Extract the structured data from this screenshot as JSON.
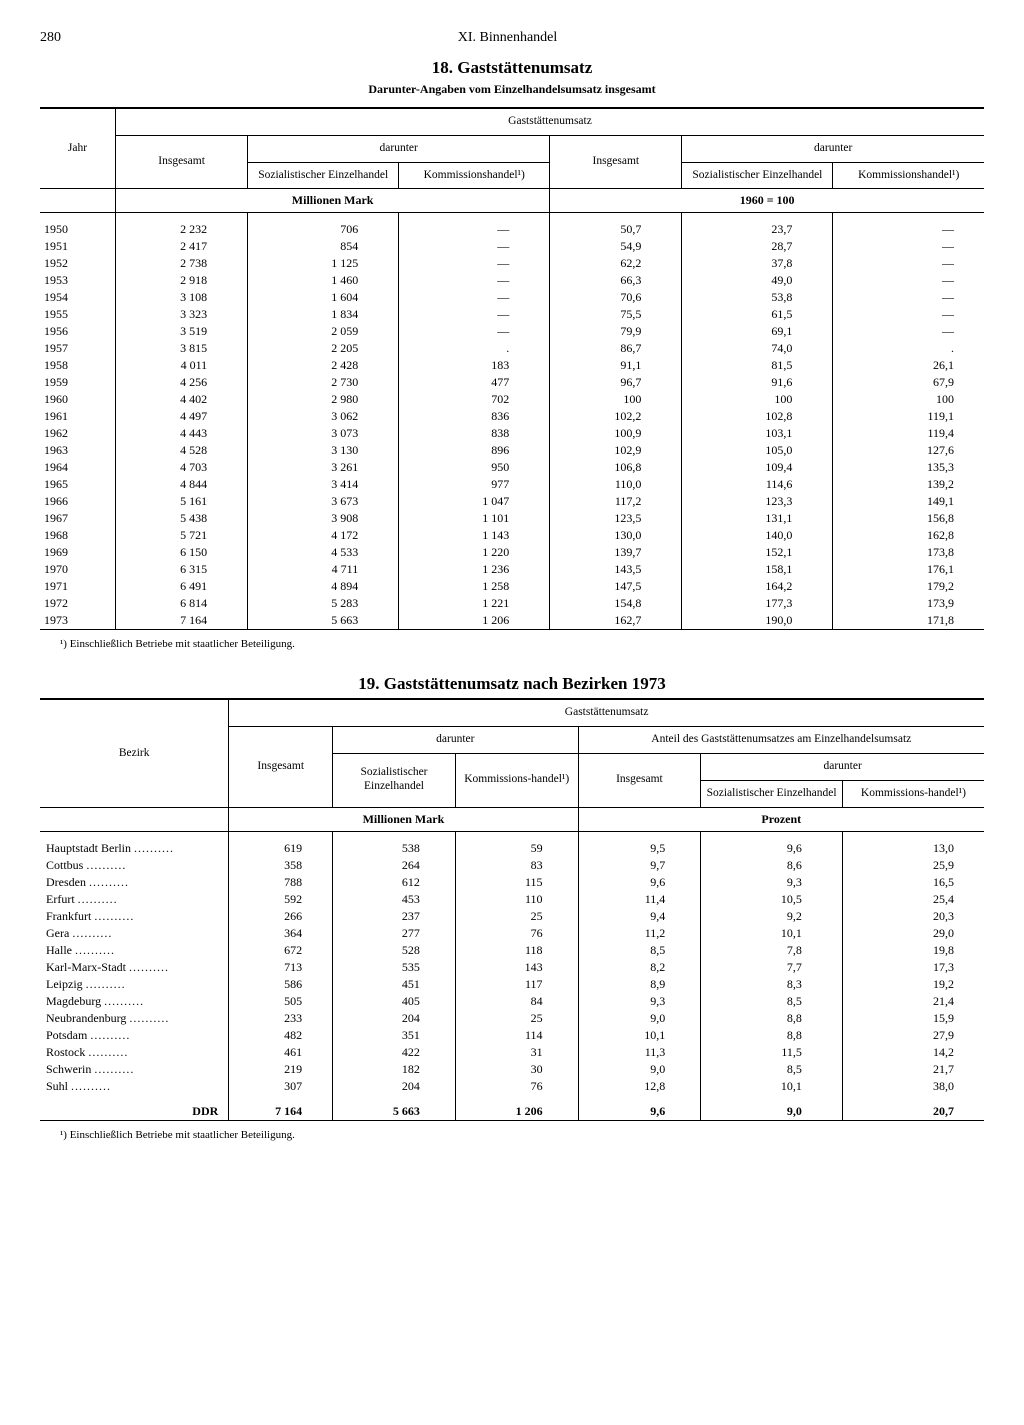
{
  "page": {
    "number": "280",
    "chapter": "XI. Binnenhandel"
  },
  "table18": {
    "title": "18. Gaststättenumsatz",
    "subtitle": "Darunter-Angaben vom Einzelhandelsumsatz insgesamt",
    "superheader": "Gaststättenumsatz",
    "col_year": "Jahr",
    "col_insgesamt": "Insgesamt",
    "col_darunter": "darunter",
    "col_soz": "Sozialistischer Einzelhandel",
    "col_komm": "Kommissionshandel¹)",
    "unit_left": "Millionen Mark",
    "unit_right": "1960 = 100",
    "rows": [
      {
        "y": "1950",
        "a": "2 232",
        "b": "706",
        "c": "—",
        "d": "50,7",
        "e": "23,7",
        "f": "—"
      },
      {
        "y": "1951",
        "a": "2 417",
        "b": "854",
        "c": "—",
        "d": "54,9",
        "e": "28,7",
        "f": "—"
      },
      {
        "y": "1952",
        "a": "2 738",
        "b": "1 125",
        "c": "—",
        "d": "62,2",
        "e": "37,8",
        "f": "—"
      },
      {
        "y": "1953",
        "a": "2 918",
        "b": "1 460",
        "c": "—",
        "d": "66,3",
        "e": "49,0",
        "f": "—"
      },
      {
        "y": "1954",
        "a": "3 108",
        "b": "1 604",
        "c": "—",
        "d": "70,6",
        "e": "53,8",
        "f": "—"
      },
      {
        "y": "1955",
        "a": "3 323",
        "b": "1 834",
        "c": "—",
        "d": "75,5",
        "e": "61,5",
        "f": "—"
      },
      {
        "y": "1956",
        "a": "3 519",
        "b": "2 059",
        "c": "—",
        "d": "79,9",
        "e": "69,1",
        "f": "—"
      },
      {
        "y": "1957",
        "a": "3 815",
        "b": "2 205",
        "c": ".",
        "d": "86,7",
        "e": "74,0",
        "f": "."
      },
      {
        "y": "1958",
        "a": "4 011",
        "b": "2 428",
        "c": "183",
        "d": "91,1",
        "e": "81,5",
        "f": "26,1"
      },
      {
        "y": "1959",
        "a": "4 256",
        "b": "2 730",
        "c": "477",
        "d": "96,7",
        "e": "91,6",
        "f": "67,9"
      },
      {
        "y": "1960",
        "a": "4 402",
        "b": "2 980",
        "c": "702",
        "d": "100",
        "e": "100",
        "f": "100"
      },
      {
        "y": "1961",
        "a": "4 497",
        "b": "3 062",
        "c": "836",
        "d": "102,2",
        "e": "102,8",
        "f": "119,1"
      },
      {
        "y": "1962",
        "a": "4 443",
        "b": "3 073",
        "c": "838",
        "d": "100,9",
        "e": "103,1",
        "f": "119,4"
      },
      {
        "y": "1963",
        "a": "4 528",
        "b": "3 130",
        "c": "896",
        "d": "102,9",
        "e": "105,0",
        "f": "127,6"
      },
      {
        "y": "1964",
        "a": "4 703",
        "b": "3 261",
        "c": "950",
        "d": "106,8",
        "e": "109,4",
        "f": "135,3"
      },
      {
        "y": "1965",
        "a": "4 844",
        "b": "3 414",
        "c": "977",
        "d": "110,0",
        "e": "114,6",
        "f": "139,2"
      },
      {
        "y": "1966",
        "a": "5 161",
        "b": "3 673",
        "c": "1 047",
        "d": "117,2",
        "e": "123,3",
        "f": "149,1"
      },
      {
        "y": "1967",
        "a": "5 438",
        "b": "3 908",
        "c": "1 101",
        "d": "123,5",
        "e": "131,1",
        "f": "156,8"
      },
      {
        "y": "1968",
        "a": "5 721",
        "b": "4 172",
        "c": "1 143",
        "d": "130,0",
        "e": "140,0",
        "f": "162,8"
      },
      {
        "y": "1969",
        "a": "6 150",
        "b": "4 533",
        "c": "1 220",
        "d": "139,7",
        "e": "152,1",
        "f": "173,8"
      },
      {
        "y": "1970",
        "a": "6 315",
        "b": "4 711",
        "c": "1 236",
        "d": "143,5",
        "e": "158,1",
        "f": "176,1"
      },
      {
        "y": "1971",
        "a": "6 491",
        "b": "4 894",
        "c": "1 258",
        "d": "147,5",
        "e": "164,2",
        "f": "179,2"
      },
      {
        "y": "1972",
        "a": "6 814",
        "b": "5 283",
        "c": "1 221",
        "d": "154,8",
        "e": "177,3",
        "f": "173,9"
      },
      {
        "y": "1973",
        "a": "7 164",
        "b": "5 663",
        "c": "1 206",
        "d": "162,7",
        "e": "190,0",
        "f": "171,8"
      }
    ],
    "footnote": "¹) Einschließlich Betriebe mit staatlicher Beteiligung."
  },
  "table19": {
    "title": "19. Gaststättenumsatz nach Bezirken 1973",
    "superheader": "Gaststättenumsatz",
    "col_bezirk": "Bezirk",
    "col_insgesamt": "Insgesamt",
    "col_darunter": "darunter",
    "col_anteil": "Anteil des Gaststättenumsatzes am Einzelhandelsumsatz",
    "col_soz": "Sozialistischer Einzelhandel",
    "col_komm": "Kommissions-handel¹)",
    "unit_left": "Millionen Mark",
    "unit_right": "Prozent",
    "rows": [
      {
        "n": "Hauptstadt Berlin",
        "a": "619",
        "b": "538",
        "c": "59",
        "d": "9,5",
        "e": "9,6",
        "f": "13,0"
      },
      {
        "n": "Cottbus",
        "a": "358",
        "b": "264",
        "c": "83",
        "d": "9,7",
        "e": "8,6",
        "f": "25,9"
      },
      {
        "n": "Dresden",
        "a": "788",
        "b": "612",
        "c": "115",
        "d": "9,6",
        "e": "9,3",
        "f": "16,5"
      },
      {
        "n": "Erfurt",
        "a": "592",
        "b": "453",
        "c": "110",
        "d": "11,4",
        "e": "10,5",
        "f": "25,4"
      },
      {
        "n": "Frankfurt",
        "a": "266",
        "b": "237",
        "c": "25",
        "d": "9,4",
        "e": "9,2",
        "f": "20,3"
      },
      {
        "n": "Gera",
        "a": "364",
        "b": "277",
        "c": "76",
        "d": "11,2",
        "e": "10,1",
        "f": "29,0"
      },
      {
        "n": "Halle",
        "a": "672",
        "b": "528",
        "c": "118",
        "d": "8,5",
        "e": "7,8",
        "f": "19,8"
      },
      {
        "n": "Karl-Marx-Stadt",
        "a": "713",
        "b": "535",
        "c": "143",
        "d": "8,2",
        "e": "7,7",
        "f": "17,3"
      },
      {
        "n": "Leipzig",
        "a": "586",
        "b": "451",
        "c": "117",
        "d": "8,9",
        "e": "8,3",
        "f": "19,2"
      },
      {
        "n": "Magdeburg",
        "a": "505",
        "b": "405",
        "c": "84",
        "d": "9,3",
        "e": "8,5",
        "f": "21,4"
      },
      {
        "n": "Neubrandenburg",
        "a": "233",
        "b": "204",
        "c": "25",
        "d": "9,0",
        "e": "8,8",
        "f": "15,9"
      },
      {
        "n": "Potsdam",
        "a": "482",
        "b": "351",
        "c": "114",
        "d": "10,1",
        "e": "8,8",
        "f": "27,9"
      },
      {
        "n": "Rostock",
        "a": "461",
        "b": "422",
        "c": "31",
        "d": "11,3",
        "e": "11,5",
        "f": "14,2"
      },
      {
        "n": "Schwerin",
        "a": "219",
        "b": "182",
        "c": "30",
        "d": "9,0",
        "e": "8,5",
        "f": "21,7"
      },
      {
        "n": "Suhl",
        "a": "307",
        "b": "204",
        "c": "76",
        "d": "12,8",
        "e": "10,1",
        "f": "38,0"
      }
    ],
    "total": {
      "n": "DDR",
      "a": "7 164",
      "b": "5 663",
      "c": "1 206",
      "d": "9,6",
      "e": "9,0",
      "f": "20,7"
    },
    "footnote": "¹) Einschließlich Betriebe mit staatlicher Beteiligung."
  }
}
